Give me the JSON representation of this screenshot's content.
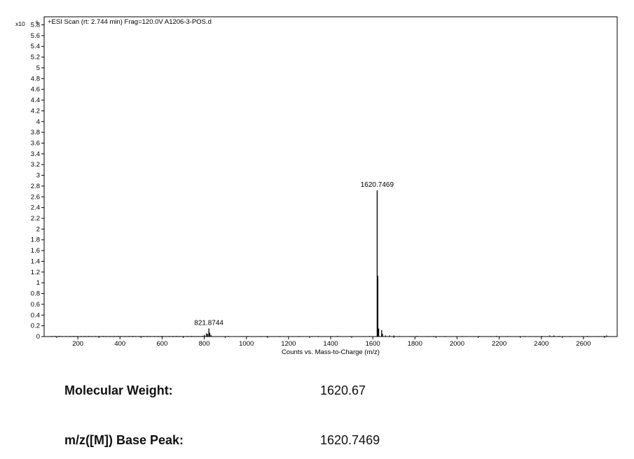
{
  "chart_data": {
    "type": "bar",
    "title": "+ESI Scan (rt: 2.744 min) Frag=120.0V A1206-3-POS.d",
    "xlabel": "Counts vs. Mass-to-Charge (m/z)",
    "y_multiplier_label": "x10",
    "y_multiplier_exponent": "6",
    "xlim": [
      40,
      2760
    ],
    "ylim": [
      0,
      5.95
    ],
    "x_ticks": [
      200,
      400,
      600,
      800,
      1000,
      1200,
      1400,
      1600,
      1800,
      2000,
      2200,
      2400,
      2600
    ],
    "y_ticks": [
      0,
      0.2,
      0.4,
      0.6,
      0.8,
      1,
      1.2,
      1.4,
      1.6,
      1.8,
      2,
      2.2,
      2.4,
      2.6,
      2.8,
      3,
      3.2,
      3.4,
      3.6,
      3.8,
      4,
      4.2,
      4.4,
      4.6,
      4.8,
      5,
      5.2,
      5.4,
      5.6,
      5.8
    ],
    "grid": false,
    "legend": "none",
    "peaks": [
      {
        "x": 800,
        "y": 0.03
      },
      {
        "x": 810,
        "y": 0.06
      },
      {
        "x": 816,
        "y": 0.05
      },
      {
        "x": 821.8744,
        "y": 0.15
      },
      {
        "x": 826,
        "y": 0.07
      },
      {
        "x": 832,
        "y": 0.03
      },
      {
        "x": 1620.7469,
        "y": 2.72
      },
      {
        "x": 1624,
        "y": 1.13
      },
      {
        "x": 1628,
        "y": 0.15
      },
      {
        "x": 1642,
        "y": 0.12
      },
      {
        "x": 1646,
        "y": 0.05
      },
      {
        "x": 1660,
        "y": 0.02
      },
      {
        "x": 1680,
        "y": 0.02
      },
      {
        "x": 1700,
        "y": 0.02
      },
      {
        "x": 2440,
        "y": 0.02
      },
      {
        "x": 2460,
        "y": 0.02
      },
      {
        "x": 2710,
        "y": 0.02
      }
    ],
    "noise_ranges": [
      {
        "from": 60,
        "to": 820,
        "count": 120
      },
      {
        "from": 840,
        "to": 1600,
        "count": 25
      },
      {
        "from": 1660,
        "to": 2740,
        "count": 40
      }
    ],
    "annotations": [
      {
        "label": "821.8744",
        "x": 821.8744,
        "y": 0.15
      },
      {
        "label": "1620.7469",
        "x": 1620.7469,
        "y": 2.72
      }
    ]
  },
  "info": {
    "molecular_weight_label": "Molecular Weight:",
    "molecular_weight_value": "1620.67",
    "base_peak_label": "m/z([M]) Base Peak:",
    "base_peak_value": "1620.7469"
  }
}
